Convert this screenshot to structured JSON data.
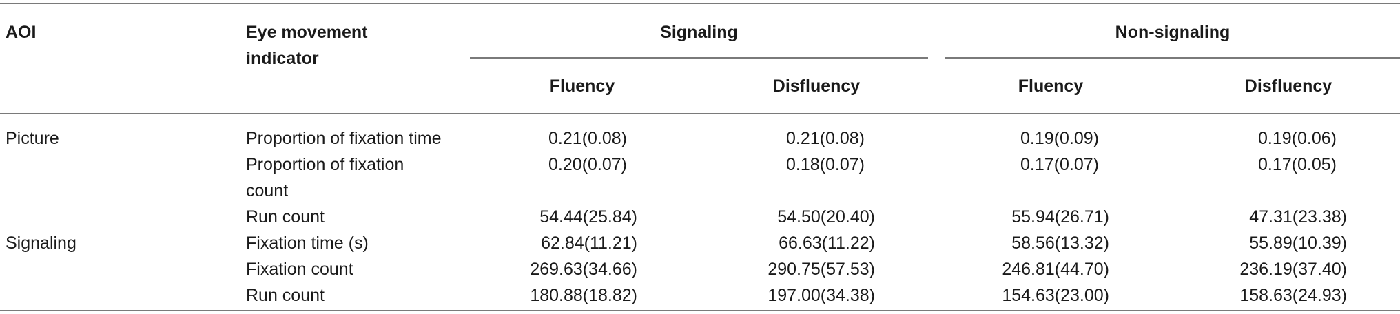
{
  "header": {
    "aoi": "AOI",
    "indicator_line1": "Eye movement",
    "indicator_line2": "indicator",
    "group_signaling": "Signaling",
    "group_nonsignaling": "Non-signaling",
    "sub": [
      "Fluency",
      "Disfluency",
      "Fluency",
      "Disfluency"
    ]
  },
  "rows": [
    {
      "aoi": "Picture",
      "ind1": "Proportion of fixation time",
      "ind2": "",
      "v": [
        "0.21(0.08)",
        "0.21(0.08)",
        "0.19(0.09)",
        "0.19(0.06)"
      ]
    },
    {
      "aoi": "",
      "ind1": "Proportion of fixation",
      "ind2": "count",
      "v": [
        "0.20(0.07)",
        "0.18(0.07)",
        "0.17(0.07)",
        "0.17(0.05)"
      ]
    },
    {
      "aoi": "",
      "ind1": "Run count",
      "ind2": "",
      "v": [
        "54.44(25.84)",
        "54.50(20.40)",
        "55.94(26.71)",
        "47.31(23.38)"
      ]
    },
    {
      "aoi": "Signaling",
      "ind1": "Fixation time (s)",
      "ind2": "",
      "v": [
        "62.84(11.21)",
        "66.63(11.22)",
        "58.56(13.32)",
        "55.89(10.39)"
      ]
    },
    {
      "aoi": "",
      "ind1": "Fixation count",
      "ind2": "",
      "v": [
        "269.63(34.66)",
        "290.75(57.53)",
        "246.81(44.70)",
        "236.19(37.40)"
      ]
    },
    {
      "aoi": "",
      "ind1": "Run count",
      "ind2": "",
      "v": [
        "180.88(18.82)",
        "197.00(34.38)",
        "154.63(23.00)",
        "158.63(24.93)"
      ]
    }
  ]
}
